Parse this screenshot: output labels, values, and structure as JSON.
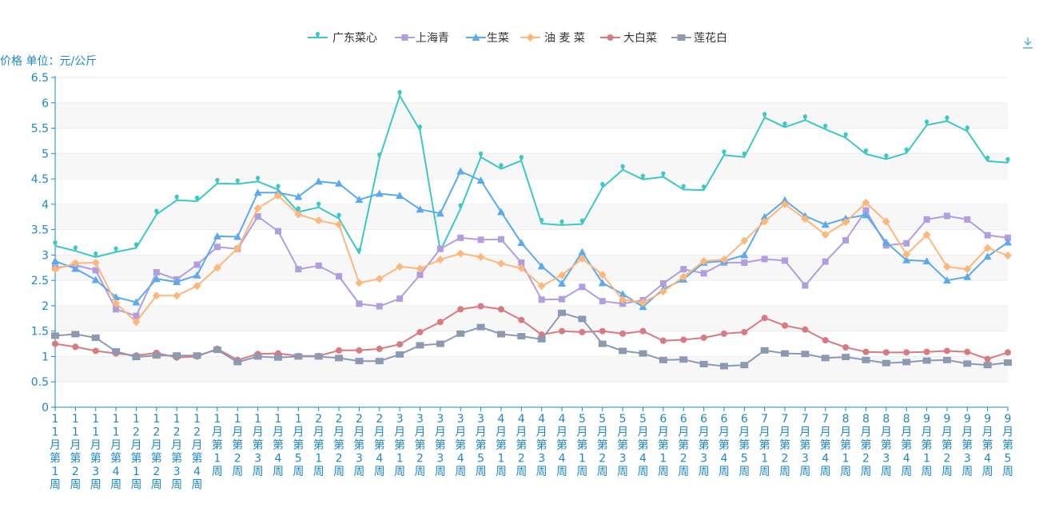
{
  "chart_data": {
    "type": "line",
    "ylabel": "价格 单位：元/公斤",
    "ylim": [
      0,
      6.5
    ],
    "yticks": [
      0,
      0.5,
      1,
      1.5,
      2,
      2.5,
      3,
      3.5,
      4,
      4.5,
      5,
      5.5,
      6,
      6.5
    ],
    "ytick_labels": [
      "0",
      "0.5",
      "1",
      "1.5",
      "2",
      "2.5",
      "3",
      "3.5",
      "4",
      "4.5",
      "5",
      "5.5",
      "6",
      "6.5"
    ],
    "grid": "horizontal, alternating bands",
    "legend_position": "top-center",
    "categories": [
      "11月第1周",
      "11月第2周",
      "11月第3周",
      "11月第4周",
      "12月第1周",
      "12月第2周",
      "12月第3周",
      "12月第4周",
      "1月第1周",
      "1月第2周",
      "1月第3周",
      "1月第4周",
      "1月第5周",
      "2月第1周",
      "2月第2周",
      "2月第3周",
      "2月第4周",
      "3月第1周",
      "3月第2周",
      "3月第3周",
      "3月第4周",
      "3月第5周",
      "4月第1周",
      "4月第2周",
      "4月第3周",
      "4月第4周",
      "5月第1周",
      "5月第2周",
      "5月第3周",
      "5月第4周",
      "6月第1周",
      "6月第2周",
      "6月第3周",
      "6月第4周",
      "6月第5周",
      "7月第1周",
      "7月第2周",
      "7月第3周",
      "7月第4周",
      "8月第1周",
      "8月第2周",
      "8月第3周",
      "8月第4周",
      "9月第1周",
      "9月第2周",
      "9月第3周",
      "9月第4周",
      "9月第5周"
    ],
    "series": [
      {
        "name": "广东菜心",
        "color": "#3cc8c4",
        "marker": "pin",
        "values": [
          3.18,
          3.08,
          2.96,
          3.06,
          3.14,
          3.8,
          4.08,
          4.06,
          4.41,
          4.4,
          4.45,
          4.29,
          3.85,
          3.94,
          3.72,
          3.03,
          4.91,
          6.14,
          5.46,
          3.08,
          3.91,
          4.93,
          4.7,
          4.86,
          3.62,
          3.59,
          3.61,
          4.33,
          4.68,
          4.49,
          4.54,
          4.29,
          4.28,
          4.97,
          4.93,
          5.71,
          5.52,
          5.66,
          5.48,
          5.31,
          4.99,
          4.89,
          5.01,
          5.56,
          5.64,
          5.44,
          4.85,
          4.82
        ]
      },
      {
        "name": "上海青",
        "color": "#b09ee0",
        "marker": "square",
        "values": [
          2.75,
          2.8,
          2.7,
          1.93,
          1.8,
          2.66,
          2.52,
          2.81,
          3.16,
          3.12,
          3.76,
          3.47,
          2.72,
          2.79,
          2.58,
          2.04,
          1.99,
          2.14,
          2.61,
          3.12,
          3.34,
          3.3,
          3.31,
          2.85,
          2.12,
          2.13,
          2.37,
          2.09,
          2.04,
          2.11,
          2.44,
          2.72,
          2.64,
          2.85,
          2.85,
          2.92,
          2.89,
          2.4,
          2.87,
          3.29,
          3.88,
          3.19,
          3.23,
          3.7,
          3.77,
          3.7,
          3.39,
          3.34
        ]
      },
      {
        "name": "生菜",
        "color": "#5aaaef",
        "marker": "triangle",
        "values": [
          2.88,
          2.73,
          2.51,
          2.17,
          2.07,
          2.53,
          2.47,
          2.6,
          3.37,
          3.36,
          4.23,
          4.23,
          4.15,
          4.45,
          4.41,
          4.09,
          4.21,
          4.17,
          3.9,
          3.82,
          4.65,
          4.47,
          3.85,
          3.24,
          2.78,
          2.44,
          3.06,
          2.45,
          2.23,
          1.98,
          2.33,
          2.52,
          2.85,
          2.88,
          3.0,
          3.75,
          4.08,
          3.77,
          3.6,
          3.72,
          3.79,
          3.25,
          2.9,
          2.88,
          2.5,
          2.57,
          2.97,
          3.25
        ]
      },
      {
        "name": "油 麦 菜",
        "color": "#fdb77a",
        "marker": "diamond",
        "values": [
          2.72,
          2.84,
          2.85,
          2.05,
          1.68,
          2.2,
          2.2,
          2.39,
          2.75,
          3.13,
          3.92,
          4.17,
          3.8,
          3.68,
          3.6,
          2.45,
          2.53,
          2.77,
          2.73,
          2.91,
          3.03,
          2.96,
          2.83,
          2.74,
          2.39,
          2.6,
          2.93,
          2.61,
          2.12,
          2.06,
          2.28,
          2.57,
          2.88,
          2.91,
          3.28,
          3.66,
          4.0,
          3.71,
          3.4,
          3.65,
          4.03,
          3.66,
          3.01,
          3.4,
          2.77,
          2.72,
          3.14,
          2.99
        ]
      },
      {
        "name": "大白菜",
        "color": "#d87a80",
        "marker": "circle",
        "values": [
          1.25,
          1.19,
          1.11,
          1.06,
          1.02,
          1.07,
          0.98,
          1.0,
          1.15,
          0.93,
          1.05,
          1.06,
          1.01,
          1.01,
          1.12,
          1.12,
          1.15,
          1.24,
          1.48,
          1.68,
          1.93,
          1.99,
          1.93,
          1.72,
          1.43,
          1.5,
          1.48,
          1.5,
          1.45,
          1.5,
          1.31,
          1.33,
          1.37,
          1.45,
          1.48,
          1.76,
          1.61,
          1.53,
          1.32,
          1.18,
          1.09,
          1.08,
          1.08,
          1.09,
          1.11,
          1.09,
          0.95,
          1.08
        ]
      },
      {
        "name": "莲花白",
        "color": "#8d98b3",
        "marker": "rect",
        "values": [
          1.41,
          1.44,
          1.37,
          1.1,
          0.99,
          1.02,
          1.02,
          1.02,
          1.13,
          0.89,
          1.0,
          0.98,
          1.0,
          1.0,
          0.97,
          0.91,
          0.91,
          1.04,
          1.22,
          1.25,
          1.45,
          1.58,
          1.44,
          1.4,
          1.34,
          1.86,
          1.74,
          1.25,
          1.11,
          1.06,
          0.93,
          0.94,
          0.85,
          0.81,
          0.83,
          1.12,
          1.06,
          1.05,
          0.97,
          0.99,
          0.93,
          0.87,
          0.89,
          0.92,
          0.93,
          0.86,
          0.83,
          0.88
        ]
      }
    ]
  }
}
